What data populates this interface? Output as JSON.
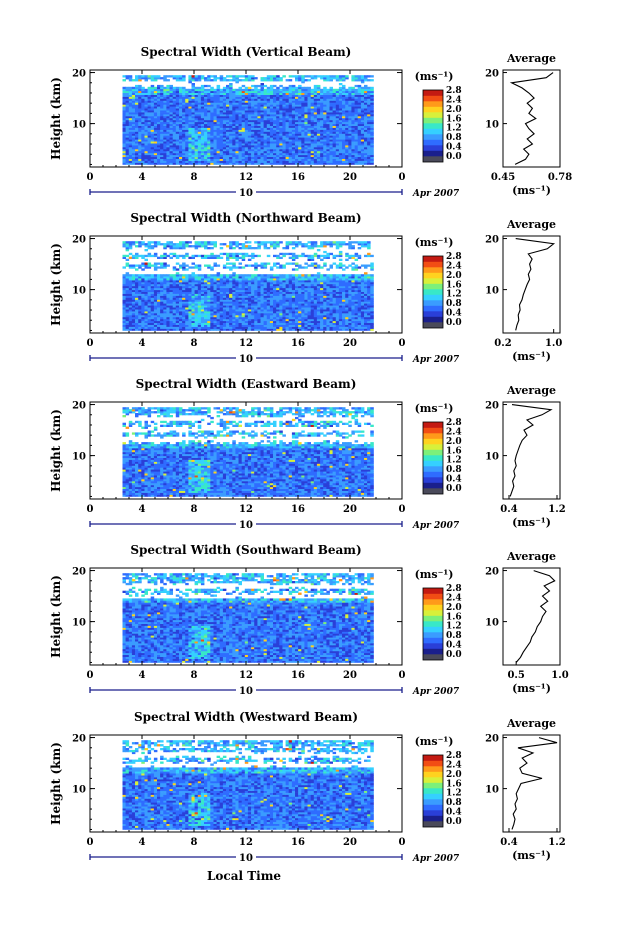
{
  "figure": {
    "x_axis_label": "Local Time",
    "date_label": "Apr 2007",
    "day_label": "10",
    "colorbar_unit": "(ms⁻¹)",
    "colorbar_ticks": [
      "0.0",
      "0.4",
      "0.8",
      "1.2",
      "1.6",
      "2.0",
      "2.4",
      "2.8"
    ],
    "colormap": [
      "#1a1f8c",
      "#2a3fd8",
      "#2f6cff",
      "#3a9cff",
      "#35d0ff",
      "#38e8c8",
      "#7cf07a",
      "#d8f03a",
      "#ffd21f",
      "#ff9a1a",
      "#f24d14",
      "#c41a12"
    ],
    "profile_title": "Average",
    "profile_unit": "(ms⁻¹)",
    "y_axis_label": "Height (km)"
  },
  "chart_data": [
    {
      "type": "heatmap",
      "title": "Spectral Width (Vertical Beam)",
      "xlabel": "",
      "ylabel": "Height (km)",
      "xlim": [
        0,
        24
      ],
      "ylim": [
        1.5,
        20.5
      ],
      "x_ticks": [
        "0",
        "4",
        "8",
        "12",
        "16",
        "20",
        "0"
      ],
      "y_ticks": [
        "10",
        "20"
      ],
      "data_x_range": [
        2.5,
        21.8
      ],
      "z_range": [
        0.0,
        2.8
      ],
      "z_unit": "ms-1",
      "profile": {
        "title": "Average",
        "xlim": [
          0.45,
          0.78
        ],
        "x_ticks": [
          "0.45",
          "0.78"
        ],
        "x_unit": "ms-1",
        "heights": [
          2,
          3,
          4,
          5,
          6,
          7,
          8,
          9,
          10,
          11,
          12,
          13,
          14,
          15,
          16,
          17,
          18,
          19,
          20
        ],
        "values": [
          0.52,
          0.58,
          0.6,
          0.57,
          0.62,
          0.59,
          0.63,
          0.6,
          0.58,
          0.64,
          0.6,
          0.62,
          0.59,
          0.63,
          0.6,
          0.56,
          0.5,
          0.7,
          0.74
        ]
      }
    },
    {
      "type": "heatmap",
      "title": "Spectral Width (Northward Beam)",
      "xlabel": "",
      "ylabel": "Height (km)",
      "xlim": [
        0,
        24
      ],
      "ylim": [
        1.5,
        20.5
      ],
      "x_ticks": [
        "0",
        "4",
        "8",
        "12",
        "16",
        "20",
        "0"
      ],
      "y_ticks": [
        "10",
        "20"
      ],
      "data_x_range": [
        2.5,
        21.8
      ],
      "z_range": [
        0.0,
        2.8
      ],
      "z_unit": "ms-1",
      "profile": {
        "title": "Average",
        "xlim": [
          0.2,
          1.1
        ],
        "x_ticks": [
          "0.2",
          "1.0"
        ],
        "x_unit": "ms-1",
        "heights": [
          2,
          3,
          4,
          5,
          6,
          7,
          8,
          9,
          10,
          11,
          12,
          13,
          14,
          15,
          16,
          17,
          18,
          19,
          20
        ],
        "values": [
          0.4,
          0.42,
          0.45,
          0.44,
          0.47,
          0.46,
          0.5,
          0.52,
          0.55,
          0.58,
          0.62,
          0.6,
          0.64,
          0.62,
          0.66,
          0.6,
          0.9,
          1.0,
          0.4
        ]
      }
    },
    {
      "type": "heatmap",
      "title": "Spectral Width (Eastward Beam)",
      "xlabel": "",
      "ylabel": "Height (km)",
      "xlim": [
        0,
        24
      ],
      "ylim": [
        1.5,
        20.5
      ],
      "x_ticks": [
        "0",
        "4",
        "8",
        "12",
        "16",
        "20",
        "0"
      ],
      "y_ticks": [
        "10",
        "20"
      ],
      "data_x_range": [
        2.5,
        21.8
      ],
      "z_range": [
        0.0,
        2.8
      ],
      "z_unit": "ms-1",
      "profile": {
        "title": "Average",
        "xlim": [
          0.3,
          1.25
        ],
        "x_ticks": [
          "0.4",
          "1.2"
        ],
        "x_unit": "ms-1",
        "heights": [
          2,
          3,
          4,
          5,
          6,
          7,
          8,
          9,
          10,
          11,
          12,
          13,
          14,
          15,
          16,
          17,
          18,
          19,
          20
        ],
        "values": [
          0.42,
          0.45,
          0.48,
          0.46,
          0.5,
          0.48,
          0.52,
          0.5,
          0.52,
          0.55,
          0.58,
          0.62,
          0.7,
          0.65,
          0.8,
          0.7,
          0.95,
          1.1,
          0.45
        ]
      }
    },
    {
      "type": "heatmap",
      "title": "Spectral Width (Southward Beam)",
      "xlabel": "",
      "ylabel": "Height (km)",
      "xlim": [
        0,
        24
      ],
      "ylim": [
        1.5,
        20.5
      ],
      "x_ticks": [
        "0",
        "4",
        "8",
        "12",
        "16",
        "20",
        "0"
      ],
      "y_ticks": [
        "10",
        "20"
      ],
      "data_x_range": [
        2.5,
        21.8
      ],
      "z_range": [
        0.0,
        2.8
      ],
      "z_unit": "ms-1",
      "profile": {
        "title": "Average",
        "xlim": [
          0.35,
          1.0
        ],
        "x_ticks": [
          "0.5",
          "1.0"
        ],
        "x_unit": "ms-1",
        "heights": [
          2,
          3,
          4,
          5,
          6,
          7,
          8,
          9,
          10,
          11,
          12,
          13,
          14,
          15,
          16,
          17,
          18,
          19,
          20
        ],
        "values": [
          0.5,
          0.55,
          0.58,
          0.62,
          0.66,
          0.68,
          0.72,
          0.74,
          0.78,
          0.8,
          0.84,
          0.78,
          0.86,
          0.8,
          0.88,
          0.82,
          0.94,
          0.88,
          0.7
        ]
      }
    },
    {
      "type": "heatmap",
      "title": "Spectral Width (Westward Beam)",
      "xlabel": "Local Time",
      "ylabel": "Height (km)",
      "xlim": [
        0,
        24
      ],
      "ylim": [
        1.5,
        20.5
      ],
      "x_ticks": [
        "0",
        "4",
        "8",
        "12",
        "16",
        "20",
        "0"
      ],
      "y_ticks": [
        "10",
        "20"
      ],
      "data_x_range": [
        2.5,
        21.8
      ],
      "z_range": [
        0.0,
        2.8
      ],
      "z_unit": "ms-1",
      "profile": {
        "title": "Average",
        "xlim": [
          0.3,
          1.25
        ],
        "x_ticks": [
          "0.4",
          "1.2"
        ],
        "x_unit": "ms-1",
        "heights": [
          2,
          3,
          4,
          5,
          6,
          7,
          8,
          9,
          10,
          11,
          12,
          13,
          14,
          15,
          16,
          17,
          18,
          19,
          20
        ],
        "values": [
          0.45,
          0.48,
          0.5,
          0.47,
          0.52,
          0.5,
          0.54,
          0.52,
          0.56,
          0.6,
          0.95,
          0.62,
          0.58,
          0.7,
          0.62,
          0.8,
          0.55,
          1.2,
          0.9
        ]
      }
    }
  ]
}
